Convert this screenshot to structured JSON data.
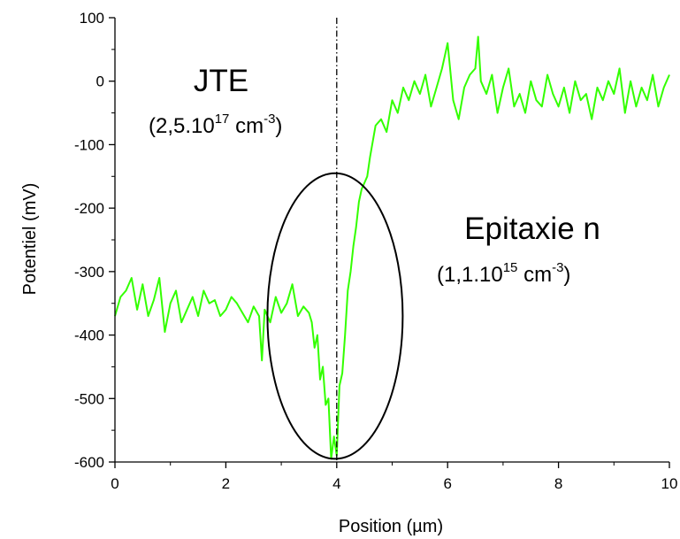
{
  "chart_data": {
    "type": "line",
    "xlabel": "Position (µm)",
    "ylabel": "Potentiel (mV)",
    "xlim": [
      0,
      10
    ],
    "ylim": [
      -600,
      100
    ],
    "x_ticks": [
      0,
      2,
      4,
      6,
      8,
      10
    ],
    "x_tick_labels": [
      "0",
      "2",
      "4",
      "6",
      "8",
      "10"
    ],
    "y_ticks": [
      100,
      0,
      -100,
      -200,
      -300,
      -400,
      -500,
      -600
    ],
    "y_tick_labels": [
      "100",
      "0",
      "-100",
      "-200",
      "-300",
      "-400",
      "-500",
      "-600"
    ],
    "grid": false,
    "line_color": "#33ff00",
    "series": [
      {
        "x": [
          0,
          0.1,
          0.2,
          0.3,
          0.4,
          0.5,
          0.6,
          0.7,
          0.8,
          0.9,
          1.0,
          1.1,
          1.2,
          1.3,
          1.4,
          1.5,
          1.6,
          1.7,
          1.8,
          1.9,
          2.0,
          2.1,
          2.2,
          2.3,
          2.4,
          2.5,
          2.6,
          2.65,
          2.7,
          2.8,
          2.9,
          3.0,
          3.1,
          3.2,
          3.3,
          3.4,
          3.5,
          3.55,
          3.6,
          3.65,
          3.7,
          3.75,
          3.8,
          3.85,
          3.9,
          3.95,
          4.0,
          4.05,
          4.1,
          4.15,
          4.2,
          4.25,
          4.3,
          4.35,
          4.4,
          4.45,
          4.5,
          4.55,
          4.6,
          4.7,
          4.8,
          4.9,
          5.0,
          5.1,
          5.2,
          5.3,
          5.4,
          5.5,
          5.6,
          5.7,
          5.8,
          5.9,
          6.0,
          6.1,
          6.2,
          6.3,
          6.4,
          6.5,
          6.55,
          6.6,
          6.7,
          6.8,
          6.9,
          7.0,
          7.1,
          7.2,
          7.3,
          7.4,
          7.5,
          7.6,
          7.7,
          7.8,
          7.9,
          8.0,
          8.1,
          8.2,
          8.3,
          8.4,
          8.5,
          8.6,
          8.7,
          8.8,
          8.9,
          9.0,
          9.1,
          9.2,
          9.3,
          9.4,
          9.5,
          9.6,
          9.7,
          9.8,
          9.9,
          10.0
        ],
        "y": [
          -370,
          -340,
          -330,
          -310,
          -360,
          -320,
          -370,
          -345,
          -310,
          -395,
          -350,
          -330,
          -380,
          -360,
          -340,
          -370,
          -330,
          -350,
          -345,
          -370,
          -360,
          -340,
          -350,
          -365,
          -380,
          -355,
          -370,
          -440,
          -360,
          -380,
          -340,
          -365,
          -350,
          -320,
          -370,
          -355,
          -365,
          -380,
          -420,
          -400,
          -470,
          -450,
          -510,
          -500,
          -595,
          -560,
          -590,
          -480,
          -460,
          -400,
          -330,
          -300,
          -260,
          -230,
          -190,
          -170,
          -160,
          -150,
          -120,
          -70,
          -60,
          -80,
          -30,
          -50,
          -10,
          -30,
          0,
          -20,
          10,
          -40,
          -10,
          20,
          60,
          -30,
          -60,
          -10,
          10,
          20,
          70,
          0,
          -20,
          10,
          -50,
          -10,
          20,
          -40,
          -20,
          -50,
          0,
          -30,
          -40,
          10,
          -20,
          -40,
          -10,
          -50,
          0,
          -30,
          -20,
          -60,
          -10,
          -30,
          0,
          -20,
          20,
          -50,
          0,
          -40,
          -10,
          -30,
          10,
          -40,
          -10,
          10
        ]
      }
    ],
    "annotations": {
      "left_region": {
        "label": "JTE",
        "doping_prefix": "(2,5.10",
        "doping_exp": "17",
        "doping_unit": " cm",
        "doping_unit_exp": "-3",
        "doping_suffix": ")"
      },
      "right_region": {
        "label": "Epitaxie n",
        "doping_prefix": "(1,1.10",
        "doping_exp": "15",
        "doping_unit": " cm",
        "doping_unit_exp": "-3",
        "doping_suffix": ")"
      },
      "vertical_marker_x": 4,
      "ellipse": {
        "cx": 3.97,
        "cy": -370,
        "rx": 1.22,
        "ry": 225
      }
    }
  }
}
